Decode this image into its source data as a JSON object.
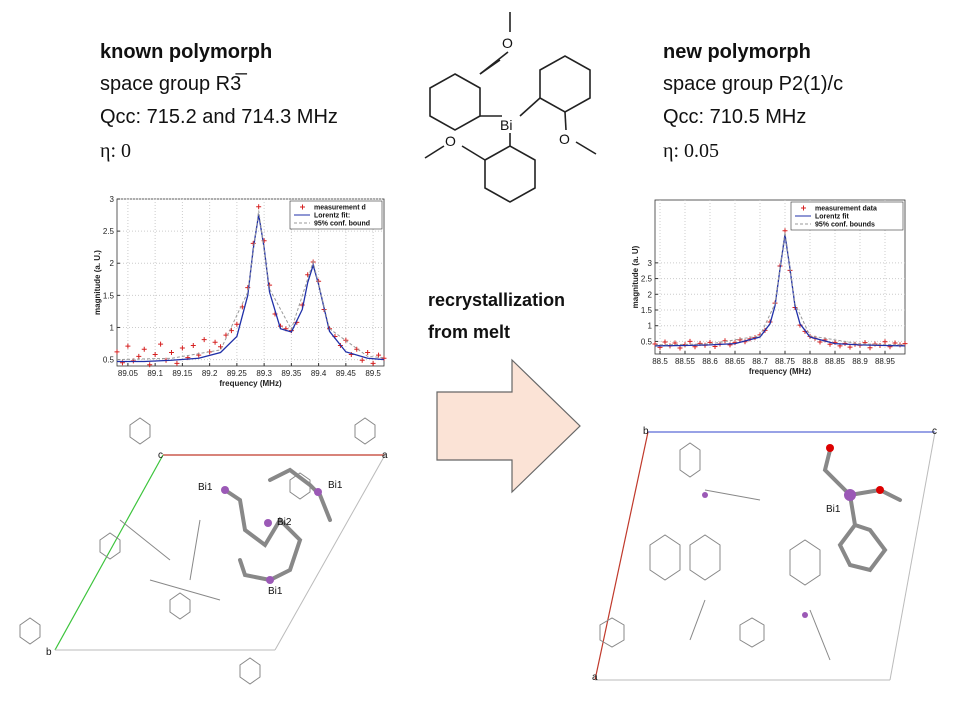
{
  "left_text": {
    "heading": "known polymorph",
    "space_group": "space group R3̅",
    "qcc": "Qcc: 715.2 and 714.3 MHz",
    "eta": "η: 0"
  },
  "right_text": {
    "heading": "new polymorph",
    "space_group": "space group P2(1)/c",
    "qcc": "Qcc: 710.5 MHz",
    "eta": "η: 0.05"
  },
  "molecule": {
    "atoms": [
      "O",
      "Bi",
      "O",
      "O"
    ]
  },
  "arrow_text": {
    "line1": "recrystallization",
    "line2": "from melt"
  },
  "left_structure": {
    "labels": [
      "c",
      "a",
      "Bi1",
      "Bi1",
      "Bi2",
      "Bi1",
      "b"
    ]
  },
  "right_structure": {
    "labels": [
      "b",
      "c",
      "Bi1",
      "a"
    ]
  },
  "chart_data": [
    {
      "type": "scatter",
      "xlabel": "frequency (MHz)",
      "ylabel": "magnitude (a. U.)",
      "xlim": [
        89.03,
        89.52
      ],
      "ylim": [
        0.4,
        3
      ],
      "xticks": [
        89.05,
        89.1,
        89.15,
        89.2,
        89.25,
        89.3,
        89.35,
        89.4,
        89.45,
        89.5
      ],
      "yticks": [
        0.5,
        1,
        1.5,
        2,
        2.5,
        3
      ],
      "grid": true,
      "legend": "upper right",
      "series": [
        {
          "name": "measurement d",
          "color": "#d62020",
          "marker": "+",
          "x": [
            89.03,
            89.04,
            89.05,
            89.06,
            89.07,
            89.08,
            89.09,
            89.1,
            89.11,
            89.12,
            89.13,
            89.14,
            89.15,
            89.16,
            89.17,
            89.18,
            89.19,
            89.2,
            89.21,
            89.22,
            89.23,
            89.24,
            89.25,
            89.26,
            89.27,
            89.28,
            89.29,
            89.3,
            89.31,
            89.32,
            89.33,
            89.34,
            89.35,
            89.36,
            89.37,
            89.38,
            89.39,
            89.4,
            89.41,
            89.42,
            89.43,
            89.44,
            89.45,
            89.46,
            89.47,
            89.48,
            89.49,
            89.5,
            89.51,
            89.52
          ],
          "values": [
            0.62,
            0.45,
            0.71,
            0.48,
            0.55,
            0.66,
            0.42,
            0.58,
            0.74,
            0.49,
            0.61,
            0.44,
            0.68,
            0.53,
            0.72,
            0.57,
            0.81,
            0.62,
            0.77,
            0.7,
            0.88,
            0.95,
            1.05,
            1.32,
            1.62,
            2.31,
            2.88,
            2.35,
            1.66,
            1.21,
            1.02,
            0.98,
            0.95,
            1.08,
            1.35,
            1.82,
            2.02,
            1.72,
            1.28,
            0.98,
            0.86,
            0.72,
            0.8,
            0.58,
            0.66,
            0.49,
            0.61,
            0.44,
            0.57,
            0.52
          ]
        },
        {
          "name": "Lorentz fit:",
          "color": "#1f2fa8",
          "x": [
            89.03,
            89.08,
            89.13,
            89.18,
            89.22,
            89.25,
            89.27,
            89.28,
            89.29,
            89.3,
            89.31,
            89.33,
            89.35,
            89.37,
            89.38,
            89.39,
            89.4,
            89.42,
            89.45,
            89.49,
            89.52
          ],
          "values": [
            0.47,
            0.47,
            0.49,
            0.52,
            0.61,
            0.86,
            1.5,
            2.22,
            2.76,
            2.24,
            1.55,
            0.98,
            0.93,
            1.28,
            1.7,
            1.97,
            1.67,
            0.94,
            0.62,
            0.52,
            0.5
          ]
        },
        {
          "name": "95% conf. bound",
          "color": "#999999",
          "dash": true,
          "x": [
            89.03,
            89.13,
            89.22,
            89.27,
            89.29,
            89.31,
            89.35,
            89.39,
            89.42,
            89.49,
            89.52
          ],
          "values": [
            0.5,
            0.52,
            0.65,
            1.55,
            2.82,
            1.6,
            0.97,
            2.02,
            0.98,
            0.55,
            0.53
          ]
        }
      ]
    },
    {
      "type": "scatter",
      "xlabel": "frequency (MHz)",
      "ylabel": "magnitude (a. U)",
      "xlim": [
        88.49,
        88.99
      ],
      "ylim": [
        0.1,
        5
      ],
      "xticks": [
        88.5,
        88.55,
        88.6,
        88.65,
        88.7,
        88.75,
        88.8,
        88.85,
        88.9,
        88.95
      ],
      "yticks": [
        0.5,
        1,
        1.5,
        2,
        2.5,
        3
      ],
      "grid": true,
      "legend": "upper right",
      "series": [
        {
          "name": "measurement data",
          "color": "#d62020",
          "marker": "+",
          "x": [
            88.49,
            88.5,
            88.51,
            88.52,
            88.53,
            88.54,
            88.55,
            88.56,
            88.57,
            88.58,
            88.59,
            88.6,
            88.61,
            88.62,
            88.63,
            88.64,
            88.65,
            88.66,
            88.67,
            88.68,
            88.69,
            88.7,
            88.71,
            88.72,
            88.73,
            88.74,
            88.75,
            88.76,
            88.77,
            88.78,
            88.79,
            88.8,
            88.81,
            88.82,
            88.83,
            88.84,
            88.85,
            88.86,
            88.87,
            88.88,
            88.89,
            88.9,
            88.91,
            88.92,
            88.93,
            88.94,
            88.95,
            88.96,
            88.97,
            88.98,
            88.99
          ],
          "values": [
            0.42,
            0.31,
            0.48,
            0.36,
            0.45,
            0.29,
            0.4,
            0.5,
            0.33,
            0.44,
            0.38,
            0.47,
            0.34,
            0.42,
            0.52,
            0.39,
            0.46,
            0.55,
            0.49,
            0.58,
            0.62,
            0.71,
            0.85,
            1.12,
            1.72,
            2.9,
            4.02,
            2.76,
            1.58,
            1.02,
            0.82,
            0.66,
            0.6,
            0.48,
            0.55,
            0.41,
            0.47,
            0.36,
            0.44,
            0.32,
            0.41,
            0.38,
            0.46,
            0.3,
            0.42,
            0.37,
            0.49,
            0.33,
            0.45,
            0.39,
            0.43
          ]
        },
        {
          "name": "Lorentz fit",
          "color": "#1f2fa8",
          "x": [
            88.49,
            88.55,
            88.6,
            88.65,
            88.7,
            88.72,
            88.73,
            88.74,
            88.75,
            88.76,
            88.77,
            88.78,
            88.8,
            88.85,
            88.9,
            88.95,
            88.99
          ],
          "values": [
            0.36,
            0.37,
            0.39,
            0.43,
            0.64,
            1.06,
            1.63,
            2.81,
            3.9,
            2.81,
            1.63,
            1.06,
            0.64,
            0.43,
            0.39,
            0.37,
            0.36
          ]
        },
        {
          "name": "95% conf. bounds",
          "color": "#999999",
          "dash": true,
          "x": [
            88.49,
            88.6,
            88.7,
            88.73,
            88.75,
            88.77,
            88.8,
            88.9,
            88.99
          ],
          "values": [
            0.39,
            0.42,
            0.68,
            1.7,
            3.98,
            1.7,
            0.68,
            0.42,
            0.39
          ]
        }
      ]
    }
  ]
}
